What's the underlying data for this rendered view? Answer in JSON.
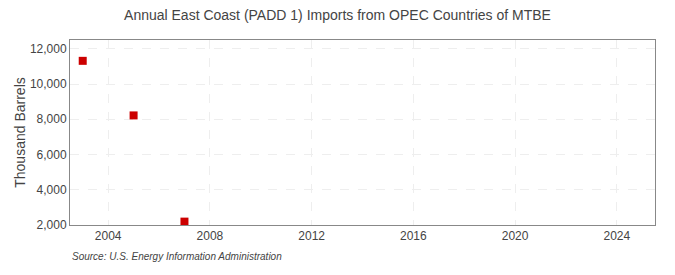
{
  "chart_data": {
    "type": "scatter",
    "title": "Annual East Coast (PADD 1) Imports from OPEC Countries of MTBE",
    "y_label": "Thousand Barrels",
    "annotations": [
      "Source: U.S. Energy Information Administration"
    ],
    "x": [
      2003,
      2005,
      2007
    ],
    "values": [
      11317,
      8220,
      2192
    ],
    "color": "#cc0000",
    "marker": "square",
    "xlim": [
      2002.5,
      2025.5
    ],
    "xticks": [
      2004,
      2008,
      2012,
      2016,
      2020,
      2024
    ],
    "ylim": [
      2000,
      12500
    ],
    "yticks": [
      {
        "value": 2000,
        "label": "2,000"
      },
      {
        "value": 4000,
        "label": "4,000"
      },
      {
        "value": 6000,
        "label": "6,000"
      },
      {
        "value": 8000,
        "label": "8,000"
      },
      {
        "value": 10000,
        "label": "10,000"
      },
      {
        "value": 12000,
        "label": "12,000"
      }
    ],
    "grid": true
  }
}
